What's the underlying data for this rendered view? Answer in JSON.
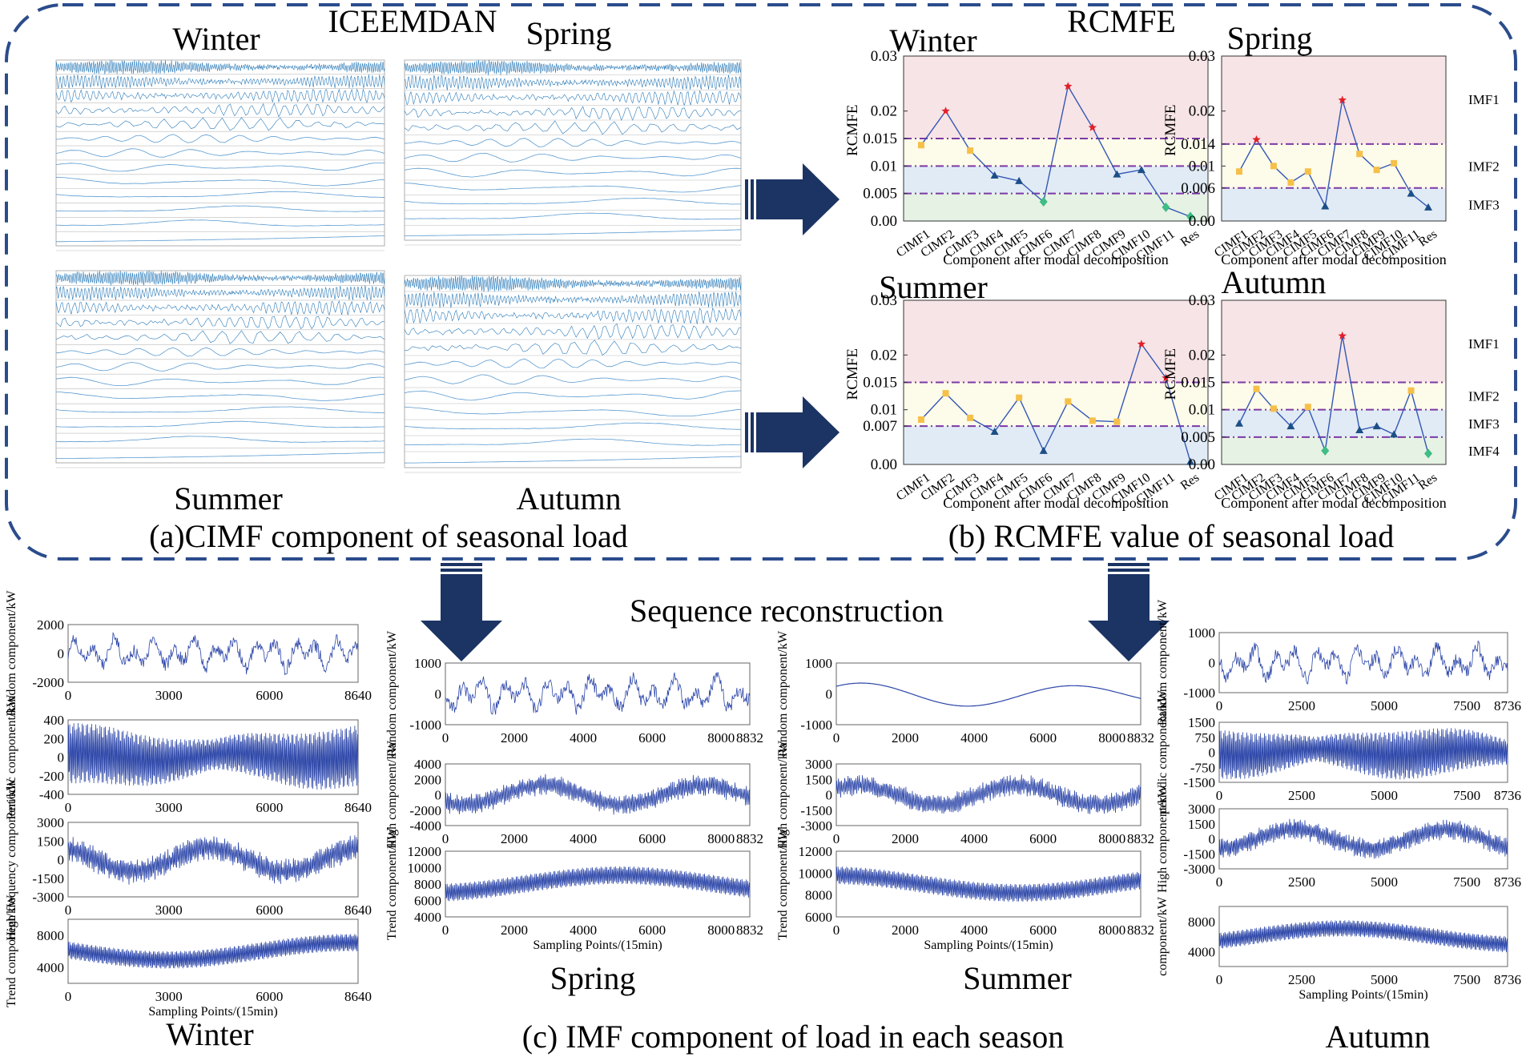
{
  "headings": {
    "iceemdan": "ICEEMDAN",
    "rcmfe": "RCMFE",
    "sequence_reconstruction": "Sequence reconstruction"
  },
  "captions": {
    "a": "(a)CIMF component of seasonal load",
    "b": "(b) RCMFE value of seasonal load",
    "c": "(c) IMF component of load in each season"
  },
  "seasons": {
    "winter": "Winter",
    "spring": "Spring",
    "summer": "Summer",
    "autumn": "Autumn"
  },
  "colors": {
    "border": "#2b4c8c",
    "arrow": "#1b3464",
    "signal": "#2b45a8",
    "band_red": "#f7e4e6",
    "band_yellow": "#fdfbea",
    "band_blue": "#e1ebf5",
    "band_green": "#e6f2e4",
    "threshold": "#7b3aa5",
    "marker_star": "#e0202a",
    "marker_square": "#f5c04a",
    "marker_triangle": "#1c4f86",
    "marker_diamond": "#3ebd84"
  },
  "rcmfe_panels": [
    {
      "id": "winter",
      "season": "Winter",
      "y_ticks": [
        "0.03",
        "0.02",
        "0.015",
        "0.01",
        "0.005",
        "0.00"
      ],
      "ylabel": "RCMFE",
      "xlabel": "Component after modal decomposition",
      "categories": [
        "CIMF1",
        "CIMF2",
        "CIMF3",
        "CIMF4",
        "CIMF5",
        "CIMF6",
        "CIMF7",
        "CIMF8",
        "CIMF9",
        "CIMF10",
        "CIMF11",
        "Res"
      ],
      "values": [
        0.0138,
        0.02,
        0.0128,
        0.0083,
        0.0073,
        0.0035,
        0.0245,
        0.017,
        0.0085,
        0.0093,
        0.0025,
        0.0008
      ],
      "markers": [
        "square",
        "star",
        "square",
        "triangle",
        "triangle",
        "diamond",
        "star",
        "star",
        "triangle",
        "triangle",
        "diamond",
        "diamond"
      ],
      "thresholds": [
        0.015,
        0.01,
        0.005
      ],
      "bands": [
        "red",
        "yellow",
        "blue",
        "green"
      ],
      "band_labels": [
        "IMF1",
        "IMF2",
        "IMF3",
        "IMF4"
      ]
    },
    {
      "id": "spring",
      "season": "Spring",
      "y_ticks": [
        "0.03",
        "0.02",
        "0.014",
        "0.01",
        "0.006",
        "0.00"
      ],
      "ylabel": "RCMFE",
      "xlabel": "Component after modal decomposition",
      "categories": [
        "CIMF1",
        "CIMF2",
        "CIMF3",
        "CIMF4",
        "CIMF5",
        "CIMF6",
        "CIMF7",
        "CIMF8",
        "CIMF9",
        "CIMF10",
        "CIMF11",
        "Res"
      ],
      "values": [
        0.009,
        0.0148,
        0.01,
        0.007,
        0.009,
        0.0027,
        0.022,
        0.0122,
        0.0093,
        0.0105,
        0.005,
        0.0025
      ],
      "markers": [
        "square",
        "star",
        "square",
        "square",
        "square",
        "triangle",
        "star",
        "square",
        "square",
        "square",
        "triangle",
        "triangle"
      ],
      "thresholds": [
        0.014,
        0.006
      ],
      "bands": [
        "red",
        "yellow",
        "blue"
      ],
      "band_labels": [
        "IMF1",
        "IMF2",
        "IMF3"
      ]
    },
    {
      "id": "summer",
      "season": "Summer",
      "y_ticks": [
        "0.03",
        "0.02",
        "0.015",
        "0.01",
        "0.007",
        "0.00"
      ],
      "ylabel": "RCMFE",
      "xlabel": "Component after modal decomposition",
      "categories": [
        "CIMF1",
        "CIMF2",
        "CIMF3",
        "CIMF4",
        "CIMF5",
        "CIMF6",
        "CIMF7",
        "CIMF8",
        "CIMF9",
        "CIMF10",
        "CIMF11",
        "Res"
      ],
      "values": [
        0.0082,
        0.013,
        0.0085,
        0.006,
        0.0122,
        0.0025,
        0.0115,
        0.008,
        0.0078,
        0.022,
        0.0158,
        0.0005
      ],
      "markers": [
        "square",
        "square",
        "square",
        "triangle",
        "square",
        "triangle",
        "square",
        "square",
        "square",
        "star",
        "star",
        "triangle"
      ],
      "thresholds": [
        0.015,
        0.007
      ],
      "bands": [
        "red",
        "yellow",
        "blue"
      ],
      "band_labels": [
        "IMF1",
        "IMF2",
        "IMF3"
      ]
    },
    {
      "id": "autumn",
      "season": "Autumn",
      "y_ticks": [
        "0.03",
        "0.02",
        "0.015",
        "0.01",
        "0.005",
        "0.00"
      ],
      "ylabel": "RCMFE",
      "xlabel": "Component after modal decomposition",
      "categories": [
        "CIMF1",
        "CIMF2",
        "CIMF3",
        "CIMF4",
        "CIMF5",
        "CIMF6",
        "CIMF7",
        "CIMF8",
        "CIMF9",
        "CIMF10",
        "CIMF11",
        "Res"
      ],
      "values": [
        0.0075,
        0.0138,
        0.0102,
        0.007,
        0.0105,
        0.0025,
        0.0235,
        0.0063,
        0.007,
        0.0055,
        0.0135,
        0.002
      ],
      "markers": [
        "triangle",
        "square",
        "square",
        "triangle",
        "square",
        "diamond",
        "star",
        "triangle",
        "triangle",
        "triangle",
        "square",
        "diamond"
      ],
      "thresholds": [
        0.015,
        0.01,
        0.005
      ],
      "bands": [
        "red",
        "yellow",
        "blue",
        "green"
      ],
      "band_labels": [
        "IMF1",
        "IMF2",
        "IMF3",
        "IMF4"
      ]
    }
  ],
  "imf_columns": [
    {
      "id": "winter",
      "season": "Winter",
      "x_ticks": [
        "0",
        "3000",
        "6000",
        "8640"
      ],
      "xlabel": "Sampling Points/(15min)",
      "panels": [
        {
          "kind": "random",
          "ylabel": "Random component/kW",
          "y_ticks": [
            "2000",
            "0",
            "-2000"
          ]
        },
        {
          "kind": "periodic",
          "ylabel": "Periodic component/kW",
          "y_ticks": [
            "400",
            "200",
            "0",
            "-200",
            "-400"
          ]
        },
        {
          "kind": "high",
          "ylabel": "High frequency component/kW",
          "y_ticks": [
            "3000",
            "1500",
            "0",
            "-1500",
            "-3000"
          ]
        },
        {
          "kind": "trend",
          "ylabel": "Trend component/kW",
          "y_ticks": [
            "8000",
            "4000"
          ]
        }
      ]
    },
    {
      "id": "spring",
      "season": "Spring",
      "x_ticks": [
        "0",
        "2000",
        "4000",
        "6000",
        "8000",
        "8832"
      ],
      "xlabel": "Sampling Points/(15min)",
      "panels": [
        {
          "kind": "random",
          "ylabel": "Random component/kW",
          "y_ticks": [
            "1000",
            "0",
            "-1000"
          ]
        },
        {
          "kind": "high",
          "ylabel": "High component/kW",
          "y_ticks": [
            "4000",
            "2000",
            "0",
            "-2000",
            "-4000"
          ]
        },
        {
          "kind": "trend",
          "ylabel": "Trend component/kW",
          "y_ticks": [
            "12000",
            "10000",
            "8000",
            "6000",
            "4000"
          ]
        }
      ]
    },
    {
      "id": "summer",
      "season": "Summer",
      "x_ticks": [
        "0",
        "2000",
        "4000",
        "6000",
        "8000",
        "8832"
      ],
      "xlabel": "Sampling Points/(15min)",
      "panels": [
        {
          "kind": "smooth",
          "ylabel": "Random component/kW",
          "y_ticks": [
            "1000",
            "0",
            "-1000"
          ]
        },
        {
          "kind": "high",
          "ylabel": "High component/kW",
          "y_ticks": [
            "3000",
            "1500",
            "0",
            "-1500",
            "-3000"
          ]
        },
        {
          "kind": "trend",
          "ylabel": "Trend component/kW",
          "y_ticks": [
            "12000",
            "10000",
            "8000",
            "6000"
          ]
        }
      ]
    },
    {
      "id": "autumn",
      "season": "Autumn",
      "x_ticks": [
        "0",
        "2500",
        "5000",
        "7500",
        "8736"
      ],
      "xlabel": "Sampling Points/(15min)",
      "panels": [
        {
          "kind": "random",
          "ylabel": "Random component/kW",
          "y_ticks": [
            "1000",
            "0",
            "-1000"
          ]
        },
        {
          "kind": "periodic",
          "ylabel": "periodic component/kW",
          "y_ticks": [
            "1500",
            "750",
            "0",
            "-750",
            "-1500"
          ]
        },
        {
          "kind": "high",
          "ylabel": "High component/kW",
          "y_ticks": [
            "3000",
            "1500",
            "0",
            "-1500",
            "-3000"
          ]
        },
        {
          "kind": "trend",
          "ylabel": "component/kW",
          "y_ticks": [
            "8000",
            "4000"
          ]
        }
      ]
    }
  ]
}
